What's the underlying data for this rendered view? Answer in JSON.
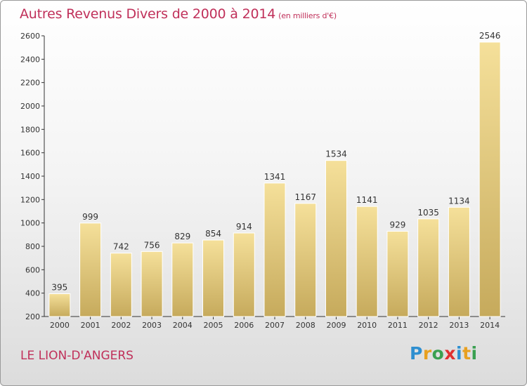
{
  "title": "Autres Revenus Divers de 2000 à 2014",
  "subtitle": "(en milliers d'€)",
  "location": "LE LION-D'ANGERS",
  "logo": {
    "letters": [
      "P",
      "r",
      "o",
      "x",
      "i",
      "t",
      "i"
    ],
    "colors": [
      "#2e8fd0",
      "#e8a020",
      "#3aa050",
      "#e03030",
      "#2e8fd0",
      "#e8a020",
      "#3aa050"
    ]
  },
  "colors": {
    "title": "#c0305a",
    "bar_light": "#f3dc94",
    "bar_dark": "#c9ae62",
    "axis": "#333333"
  },
  "chart_data": {
    "type": "bar",
    "categories": [
      "2000",
      "2001",
      "2002",
      "2003",
      "2004",
      "2005",
      "2006",
      "2007",
      "2008",
      "2009",
      "2010",
      "2011",
      "2012",
      "2013",
      "2014"
    ],
    "values": [
      395,
      999,
      742,
      756,
      829,
      854,
      914,
      1341,
      1167,
      1534,
      1141,
      929,
      1035,
      1134,
      2546
    ],
    "ylim": [
      200,
      2600
    ],
    "yticks": [
      200,
      400,
      600,
      800,
      1000,
      1200,
      1400,
      1600,
      1800,
      2000,
      2200,
      2400,
      2600
    ],
    "grid": false,
    "data_labels": true
  }
}
